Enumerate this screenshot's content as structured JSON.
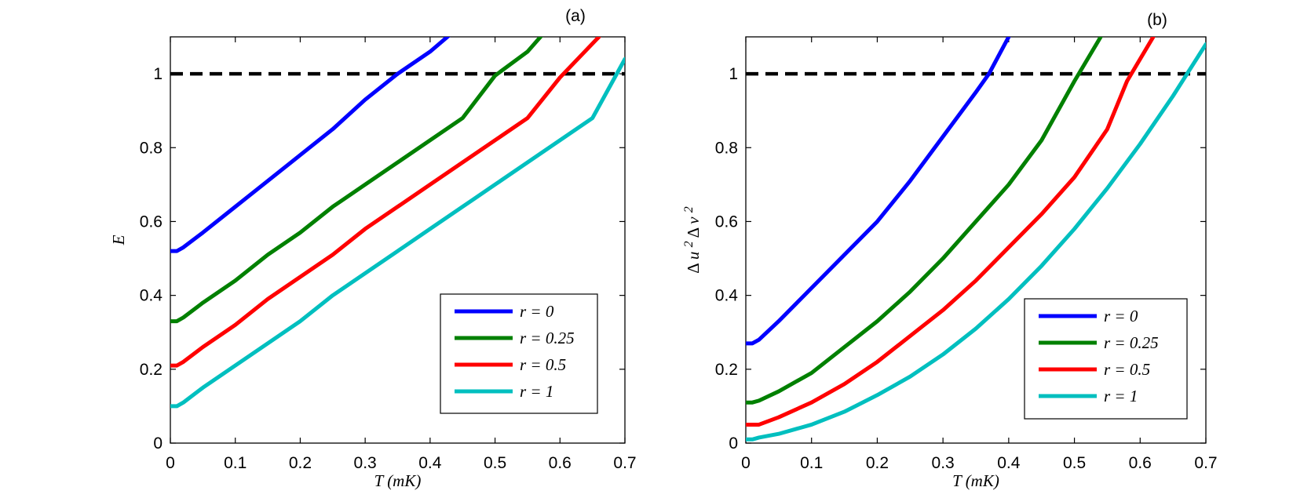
{
  "chart_data": [
    {
      "type": "line",
      "panel_label": "(a)",
      "xlabel": "T (mK)",
      "ylabel": "E",
      "xlim": [
        0,
        0.7
      ],
      "ylim": [
        0,
        1.1
      ],
      "xticks": [
        "0",
        "0.1",
        "0.2",
        "0.3",
        "0.4",
        "0.5",
        "0.6",
        "0.7"
      ],
      "yticks": [
        "0",
        "0.2",
        "0.4",
        "0.6",
        "0.8",
        "1"
      ],
      "legend_position": "bottom-right",
      "reference_line": {
        "y": 1,
        "style": "dashed",
        "color": "#000000"
      },
      "series": [
        {
          "name": "r = 0",
          "color": "#0000ff",
          "x": [
            0,
            0.01,
            0.02,
            0.05,
            0.1,
            0.15,
            0.2,
            0.25,
            0.3,
            0.35,
            0.4,
            0.44
          ],
          "y": [
            0.52,
            0.52,
            0.53,
            0.57,
            0.64,
            0.71,
            0.78,
            0.85,
            0.93,
            1.0,
            1.06,
            1.12
          ]
        },
        {
          "name": "r = 0.25",
          "color": "#008000",
          "x": [
            0,
            0.01,
            0.02,
            0.05,
            0.1,
            0.15,
            0.2,
            0.25,
            0.3,
            0.35,
            0.4,
            0.45,
            0.5,
            0.55,
            0.58
          ],
          "y": [
            0.33,
            0.33,
            0.34,
            0.38,
            0.44,
            0.51,
            0.57,
            0.64,
            0.7,
            0.76,
            0.82,
            0.88,
            0.995,
            1.06,
            1.12
          ]
        },
        {
          "name": "r = 0.5",
          "color": "#ff0000",
          "x": [
            0,
            0.01,
            0.02,
            0.05,
            0.1,
            0.15,
            0.2,
            0.25,
            0.3,
            0.35,
            0.4,
            0.45,
            0.5,
            0.55,
            0.6,
            0.66
          ],
          "y": [
            0.21,
            0.21,
            0.22,
            0.26,
            0.32,
            0.39,
            0.45,
            0.51,
            0.58,
            0.64,
            0.7,
            0.76,
            0.82,
            0.88,
            0.99,
            1.1
          ]
        },
        {
          "name": "r = 1",
          "color": "#00bfbf",
          "x": [
            0,
            0.01,
            0.02,
            0.05,
            0.1,
            0.15,
            0.2,
            0.25,
            0.3,
            0.35,
            0.4,
            0.45,
            0.5,
            0.55,
            0.6,
            0.65,
            0.7
          ],
          "y": [
            0.1,
            0.1,
            0.11,
            0.15,
            0.21,
            0.27,
            0.33,
            0.4,
            0.46,
            0.52,
            0.58,
            0.64,
            0.7,
            0.76,
            0.82,
            0.88,
            1.04
          ]
        }
      ]
    },
    {
      "type": "line",
      "panel_label": "(b)",
      "xlabel": "T (mK)",
      "ylabel": "Δ u 2 Δ v 2",
      "xlim": [
        0,
        0.7
      ],
      "ylim": [
        0,
        1.1
      ],
      "xticks": [
        "0",
        "0.1",
        "0.2",
        "0.3",
        "0.4",
        "0.5",
        "0.6",
        "0.7"
      ],
      "yticks": [
        "0",
        "0.2",
        "0.4",
        "0.6",
        "0.8",
        "1"
      ],
      "legend_position": "bottom-right",
      "reference_line": {
        "y": 1,
        "style": "dashed",
        "color": "#000000"
      },
      "series": [
        {
          "name": "r = 0",
          "color": "#0000ff",
          "x": [
            0,
            0.01,
            0.02,
            0.05,
            0.1,
            0.15,
            0.2,
            0.25,
            0.3,
            0.35,
            0.37,
            0.4
          ],
          "y": [
            0.27,
            0.27,
            0.28,
            0.33,
            0.42,
            0.51,
            0.6,
            0.71,
            0.83,
            0.95,
            1.0,
            1.1
          ]
        },
        {
          "name": "r = 0.25",
          "color": "#008000",
          "x": [
            0,
            0.01,
            0.02,
            0.05,
            0.1,
            0.15,
            0.2,
            0.25,
            0.3,
            0.35,
            0.4,
            0.45,
            0.5,
            0.54
          ],
          "y": [
            0.11,
            0.11,
            0.115,
            0.14,
            0.19,
            0.26,
            0.33,
            0.41,
            0.5,
            0.6,
            0.7,
            0.82,
            0.98,
            1.1
          ]
        },
        {
          "name": "r = 0.5",
          "color": "#ff0000",
          "x": [
            0,
            0.01,
            0.02,
            0.05,
            0.1,
            0.15,
            0.2,
            0.25,
            0.3,
            0.35,
            0.4,
            0.45,
            0.5,
            0.55,
            0.58,
            0.62
          ],
          "y": [
            0.05,
            0.05,
            0.05,
            0.07,
            0.11,
            0.16,
            0.22,
            0.29,
            0.36,
            0.44,
            0.53,
            0.62,
            0.72,
            0.85,
            0.98,
            1.1
          ]
        },
        {
          "name": "r = 1",
          "color": "#00bfbf",
          "x": [
            0,
            0.01,
            0.02,
            0.05,
            0.1,
            0.15,
            0.2,
            0.25,
            0.3,
            0.35,
            0.4,
            0.45,
            0.5,
            0.55,
            0.6,
            0.65,
            0.7
          ],
          "y": [
            0.01,
            0.01,
            0.015,
            0.025,
            0.05,
            0.085,
            0.13,
            0.18,
            0.24,
            0.31,
            0.39,
            0.48,
            0.58,
            0.69,
            0.81,
            0.94,
            1.08
          ]
        }
      ]
    }
  ]
}
